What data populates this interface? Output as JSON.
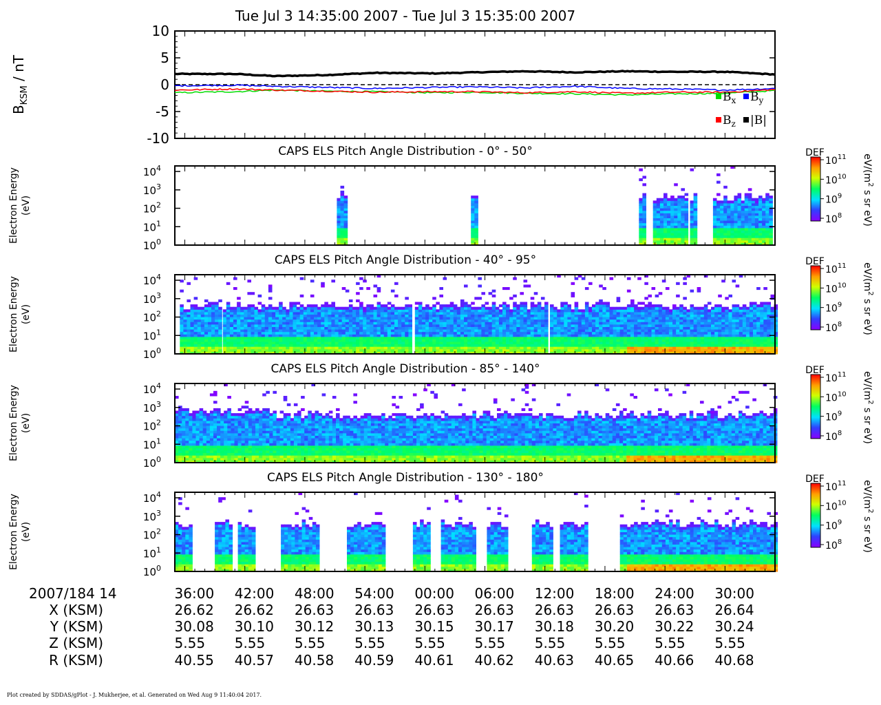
{
  "title": "Tue Jul 3 14:35:00 2007 - Tue Jul 3 15:35:00 2007",
  "footer": "Plot created by SDDAS/gPlot - J. Mukherjee, et al.  Generated on Wed Aug 9 11:40:04 2017.",
  "mag_panel": {
    "ylabel": "B",
    "ylabel_sub": "KSM",
    "ylabel_unit": " / nT",
    "yticks": [
      "10",
      "5",
      "0",
      "-5",
      "-10"
    ],
    "ylim": [
      -10,
      10
    ],
    "legend": [
      {
        "symbol": "B",
        "sub": "x",
        "color": "#00dd00"
      },
      {
        "symbol": "B",
        "sub": "y",
        "color": "#0000ff"
      },
      {
        "symbol": "B",
        "sub": "z",
        "color": "#ff0000"
      },
      {
        "symbol": "|B|",
        "sub": "",
        "color": "#000000"
      }
    ]
  },
  "spectro_panels": [
    {
      "title": "CAPS ELS Pitch Angle Distribution - 0° - 50°",
      "ylabel1": "Electron Energy",
      "ylabel2": "(eV)"
    },
    {
      "title": "CAPS ELS Pitch Angle Distribution - 40° - 95°",
      "ylabel1": "Electron Energy",
      "ylabel2": "(eV)"
    },
    {
      "title": "CAPS ELS Pitch Angle Distribution - 85° - 140°",
      "ylabel1": "Electron Energy",
      "ylabel2": "(eV)"
    },
    {
      "title": "CAPS ELS Pitch Angle Distribution - 130° - 180°",
      "ylabel1": "Electron Energy",
      "ylabel2": "(eV)"
    }
  ],
  "energy_ticks": [
    {
      "base": "10",
      "exp": "4"
    },
    {
      "base": "10",
      "exp": "3"
    },
    {
      "base": "10",
      "exp": "2"
    },
    {
      "base": "10",
      "exp": "1"
    },
    {
      "base": "10",
      "exp": "0"
    }
  ],
  "colorbar": {
    "label": "DEF",
    "unit_prefix": "eV/(m",
    "unit_exp": "2",
    "unit_suffix": " s sr eV)",
    "ticks": [
      {
        "base": "10",
        "exp": "11"
      },
      {
        "base": "10",
        "exp": "10"
      },
      {
        "base": "10",
        "exp": "9"
      },
      {
        "base": "10",
        "exp": "8"
      }
    ]
  },
  "time_axis": {
    "row_labels": [
      "2007/184 14",
      "X (KSM)",
      "Y (KSM)",
      "Z (KSM)",
      "R (KSM)"
    ],
    "times": [
      "36:00",
      "42:00",
      "48:00",
      "54:00",
      "00:00",
      "06:00",
      "12:00",
      "18:00",
      "24:00",
      "30:00"
    ],
    "X": [
      "26.62",
      "26.62",
      "26.63",
      "26.63",
      "26.63",
      "26.63",
      "26.63",
      "26.63",
      "26.63",
      "26.64"
    ],
    "Y": [
      "30.08",
      "30.10",
      "30.12",
      "30.13",
      "30.15",
      "30.17",
      "30.18",
      "30.20",
      "30.22",
      "30.24"
    ],
    "Z": [
      "5.55",
      "5.55",
      "5.55",
      "5.55",
      "5.55",
      "5.55",
      "5.55",
      "5.55",
      "5.55",
      "5.55"
    ],
    "R": [
      "40.55",
      "40.57",
      "40.58",
      "40.59",
      "40.61",
      "40.62",
      "40.63",
      "40.65",
      "40.66",
      "40.68"
    ]
  },
  "chart_data": {
    "type": "line",
    "x_unit": "minutes after 14:35",
    "xlim": [
      0,
      60
    ],
    "series": [
      {
        "name": "|B|",
        "color": "#000000",
        "x": [
          0,
          6,
          10,
          15,
          20,
          26,
          30,
          35,
          40,
          45,
          50,
          55,
          60
        ],
        "values": [
          2.0,
          2.0,
          1.6,
          1.8,
          2.2,
          2.1,
          2.3,
          2.5,
          2.3,
          2.5,
          2.4,
          2.4,
          1.9
        ]
      },
      {
        "name": "Bx",
        "color": "#00dd00",
        "x": [
          0,
          6,
          10,
          15,
          20,
          26,
          30,
          35,
          40,
          45,
          50,
          55,
          60
        ],
        "values": [
          -1.5,
          -1.3,
          -1.0,
          -1.2,
          -1.3,
          -1.5,
          -1.4,
          -1.6,
          -1.7,
          -1.9,
          -1.7,
          -1.6,
          -1.1
        ]
      },
      {
        "name": "By",
        "color": "#0000ff",
        "x": [
          0,
          6,
          10,
          15,
          20,
          26,
          30,
          35,
          40,
          45,
          50,
          55,
          60
        ],
        "values": [
          -0.2,
          -0.1,
          -0.3,
          -0.5,
          -0.7,
          -0.5,
          -0.4,
          -0.6,
          -0.3,
          -0.7,
          -0.8,
          -1.0,
          -0.7
        ]
      },
      {
        "name": "Bz",
        "color": "#ff0000",
        "x": [
          0,
          6,
          10,
          15,
          20,
          26,
          30,
          35,
          40,
          45,
          50,
          55,
          60
        ],
        "values": [
          -1.0,
          -0.8,
          -1.0,
          -1.2,
          -1.4,
          -1.3,
          -1.3,
          -1.5,
          -1.3,
          -1.6,
          -1.4,
          -1.4,
          -0.9
        ]
      }
    ],
    "spectrogram": {
      "energy_range_eV": [
        1,
        20000
      ],
      "def_range": [
        100000000.0,
        100000000000.0
      ],
      "panels": [
        {
          "pitch_range": "0° - 50°",
          "data_intervals_min": [
            [
              16.2,
              17.0
            ],
            [
              29.6,
              30.3
            ],
            [
              46.4,
              47.0
            ],
            [
              47.8,
              51.0
            ],
            [
              51.5,
              52.0
            ],
            [
              53.8,
              59.5
            ]
          ]
        },
        {
          "pitch_range": "40° - 95°",
          "data_intervals_min": [
            [
              0.5,
              4.4
            ],
            [
              4.8,
              23.5
            ],
            [
              24.0,
              37.0
            ],
            [
              37.5,
              60
            ]
          ]
        },
        {
          "pitch_range": "85° - 140°",
          "data_intervals_min": [
            [
              0,
              60
            ]
          ]
        },
        {
          "pitch_range": "130° - 180°",
          "data_intervals_min": [
            [
              0,
              1.5
            ],
            [
              4.0,
              5.6
            ],
            [
              6.3,
              8.0
            ],
            [
              10.6,
              14.1
            ],
            [
              17.2,
              21.0
            ],
            [
              23.8,
              25.4
            ],
            [
              26.6,
              29.8
            ],
            [
              31.2,
              33.0
            ],
            [
              35.7,
              37.5
            ],
            [
              38.5,
              41.2
            ],
            [
              44.5,
              60
            ]
          ]
        }
      ]
    }
  }
}
